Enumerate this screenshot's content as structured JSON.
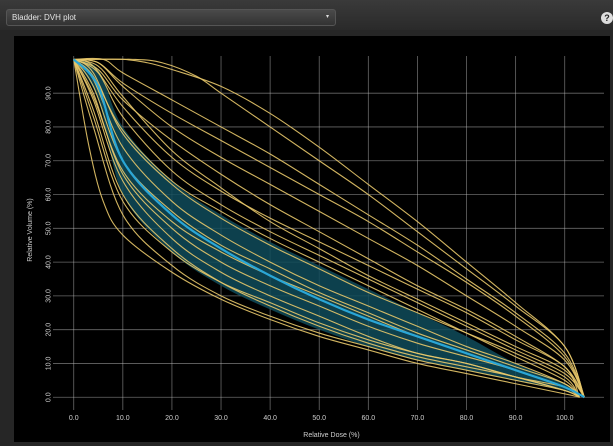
{
  "toolbar": {
    "select_value": "Bladder: DVH plot",
    "caret": "▾",
    "help": "?"
  },
  "colors": {
    "band": "#0f4b5a",
    "median": "#2aa6d6",
    "curve": "#e8c86a",
    "grid": "#bdbdbd"
  },
  "chart_data": {
    "type": "line",
    "xlabel": "Relative Dose (%)",
    "ylabel": "Relative Volume (%)",
    "xlim": [
      -3,
      108
    ],
    "ylim": [
      -2,
      101
    ],
    "xticks": [
      0,
      10,
      20,
      30,
      40,
      50,
      60,
      70,
      80,
      90,
      100
    ],
    "xtick_labels": [
      "0.0",
      "10.0",
      "20.0",
      "30.0",
      "40.0",
      "50.0",
      "60.0",
      "70.0",
      "80.0",
      "90.0",
      "100.0"
    ],
    "yticks": [
      0,
      10,
      20,
      30,
      40,
      50,
      60,
      70,
      80,
      90
    ],
    "ytick_labels": [
      "0.0",
      "10.0",
      "20.0",
      "30.0",
      "40.0",
      "50.0",
      "60.0",
      "70.0",
      "80.0",
      "90.0"
    ],
    "grid": true,
    "band": {
      "x": [
        0,
        5,
        10,
        20,
        30,
        40,
        50,
        60,
        70,
        80,
        90,
        100,
        104
      ],
      "upper": [
        100,
        97,
        80,
        64,
        54,
        46,
        39,
        32,
        25,
        18,
        10,
        4,
        0
      ],
      "lower": [
        100,
        88,
        60,
        43,
        33,
        26,
        20,
        15,
        11,
        8,
        5,
        2,
        0
      ]
    },
    "median": {
      "x": [
        0,
        5,
        10,
        20,
        30,
        40,
        50,
        60,
        70,
        80,
        90,
        100,
        104
      ],
      "y": [
        100,
        92,
        70,
        54,
        44,
        36,
        29,
        23,
        18,
        13,
        8,
        3,
        0
      ]
    },
    "series": [
      {
        "x": [
          0,
          4,
          10,
          20,
          30,
          40,
          50,
          60,
          70,
          80,
          90,
          100,
          103
        ],
        "y": [
          100,
          96,
          78,
          63,
          53,
          45,
          38,
          31,
          25,
          19,
          13,
          6,
          0
        ]
      },
      {
        "x": [
          0,
          4,
          10,
          20,
          30,
          40,
          50,
          60,
          70,
          80,
          90,
          100,
          103
        ],
        "y": [
          100,
          90,
          66,
          50,
          40,
          33,
          27,
          21,
          16,
          12,
          8,
          3,
          0
        ]
      },
      {
        "x": [
          0,
          4,
          10,
          20,
          30,
          40,
          50,
          60,
          70,
          80,
          90,
          100,
          103
        ],
        "y": [
          100,
          85,
          60,
          44,
          34,
          27,
          21,
          16,
          12,
          9,
          6,
          2,
          0
        ]
      },
      {
        "x": [
          0,
          4,
          10,
          20,
          30,
          40,
          50,
          60,
          70,
          80,
          90,
          100,
          103
        ],
        "y": [
          100,
          80,
          54,
          39,
          30,
          24,
          19,
          15,
          11,
          8,
          5,
          2,
          0
        ]
      },
      {
        "x": [
          0,
          3,
          6,
          10,
          20,
          30,
          40,
          50,
          60,
          70,
          80,
          90,
          100,
          103
        ],
        "y": [
          100,
          75,
          58,
          48,
          37,
          29,
          23,
          18,
          14,
          10,
          7,
          4,
          1,
          0
        ]
      },
      {
        "x": [
          0,
          4,
          10,
          20,
          30,
          40,
          50,
          60,
          70,
          80,
          90,
          100,
          103
        ],
        "y": [
          100,
          98,
          86,
          71,
          61,
          53,
          46,
          39,
          32,
          25,
          17,
          9,
          0
        ]
      },
      {
        "x": [
          0,
          5,
          10,
          20,
          30,
          40,
          50,
          60,
          70,
          80,
          90,
          100,
          104
        ],
        "y": [
          100,
          99,
          92,
          80,
          71,
          63,
          55,
          47,
          39,
          30,
          21,
          11,
          0
        ]
      },
      {
        "x": [
          0,
          6,
          10,
          20,
          30,
          40,
          50,
          60,
          70,
          80,
          90,
          100,
          104
        ],
        "y": [
          100,
          100,
          96,
          88,
          80,
          72,
          63,
          54,
          45,
          35,
          25,
          13,
          0
        ]
      },
      {
        "x": [
          0,
          10,
          15,
          20,
          30,
          40,
          50,
          60,
          70,
          80,
          90,
          100,
          104
        ],
        "y": [
          100,
          100,
          99,
          97,
          92,
          84,
          74,
          63,
          52,
          40,
          28,
          15,
          0
        ]
      },
      {
        "x": [
          0,
          12,
          18,
          25,
          30,
          40,
          50,
          60,
          70,
          80,
          90,
          100,
          104
        ],
        "y": [
          100,
          100,
          99,
          95,
          90,
          80,
          70,
          60,
          49,
          38,
          27,
          15,
          0
        ]
      },
      {
        "x": [
          0,
          4,
          10,
          20,
          30,
          40,
          50,
          60,
          70,
          80,
          90,
          100,
          103
        ],
        "y": [
          100,
          94,
          74,
          58,
          48,
          40,
          33,
          27,
          21,
          15,
          10,
          4,
          0
        ]
      },
      {
        "x": [
          0,
          4,
          10,
          20,
          30,
          40,
          50,
          60,
          70,
          80,
          90,
          100,
          103
        ],
        "y": [
          100,
          88,
          64,
          47,
          37,
          30,
          24,
          18,
          13,
          10,
          6,
          2,
          0
        ]
      },
      {
        "x": [
          0,
          5,
          10,
          20,
          30,
          40,
          50,
          60,
          70,
          80,
          90,
          100,
          104
        ],
        "y": [
          100,
          96,
          83,
          67,
          57,
          49,
          42,
          35,
          28,
          21,
          14,
          7,
          0
        ]
      },
      {
        "x": [
          0,
          5,
          10,
          20,
          30,
          40,
          50,
          60,
          70,
          80,
          90,
          100,
          104
        ],
        "y": [
          100,
          97,
          88,
          76,
          66,
          57,
          49,
          41,
          33,
          26,
          18,
          9,
          0
        ]
      },
      {
        "x": [
          0,
          4,
          10,
          20,
          30,
          40,
          50,
          60,
          70,
          80,
          90,
          100,
          103
        ],
        "y": [
          100,
          92,
          70,
          55,
          45,
          38,
          31,
          25,
          19,
          14,
          9,
          4,
          0
        ]
      },
      {
        "x": [
          0,
          4,
          10,
          20,
          30,
          40,
          50,
          60,
          70,
          80,
          90,
          100,
          103
        ],
        "y": [
          100,
          83,
          58,
          43,
          34,
          28,
          22,
          17,
          13,
          10,
          6,
          3,
          0
        ]
      },
      {
        "x": [
          0,
          5,
          10,
          20,
          30,
          40,
          50,
          60,
          70,
          80,
          90,
          100,
          104
        ],
        "y": [
          100,
          99,
          93,
          84,
          76,
          68,
          60,
          52,
          43,
          34,
          24,
          12,
          0
        ]
      },
      {
        "x": [
          0,
          4,
          10,
          20,
          30,
          40,
          50,
          60,
          70,
          80,
          90,
          100,
          103
        ],
        "y": [
          100,
          95,
          79,
          64,
          55,
          47,
          40,
          33,
          26,
          19,
          12,
          5,
          0
        ]
      },
      {
        "x": [
          0,
          4,
          10,
          20,
          30,
          40,
          50,
          60,
          70,
          80,
          90,
          100,
          103
        ],
        "y": [
          100,
          89,
          67,
          52,
          43,
          36,
          30,
          24,
          18,
          13,
          8,
          3,
          0
        ]
      },
      {
        "x": [
          0,
          5,
          10,
          20,
          30,
          40,
          50,
          60,
          70,
          80,
          90,
          100,
          104
        ],
        "y": [
          100,
          98,
          89,
          73,
          62,
          52,
          44,
          36,
          29,
          22,
          15,
          8,
          0
        ]
      }
    ]
  }
}
